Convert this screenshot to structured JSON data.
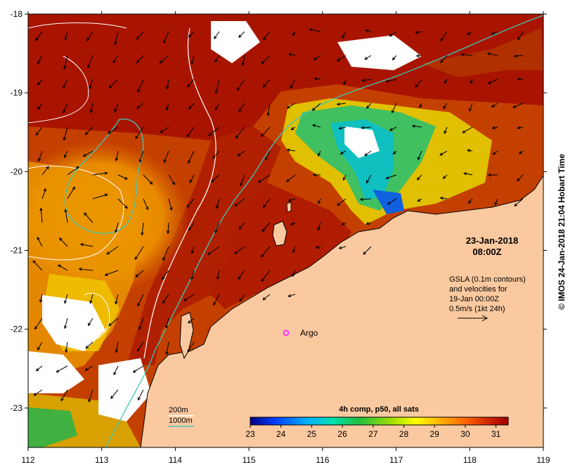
{
  "map": {
    "lon_ticks": [
      "112",
      "113",
      "114",
      "115",
      "116",
      "117",
      "118",
      "119"
    ],
    "lat_ticks": [
      "-18",
      "-19",
      "-20",
      "-21",
      "-22",
      "-23"
    ],
    "lon_range": [
      112,
      119
    ],
    "lat_range": [
      -23.5,
      -18
    ]
  },
  "date_title": "23-Jan-2018",
  "time_title": "08:00Z",
  "gsla": {
    "line1": "GSLA (0.1m contours)",
    "line2": "and velocities for",
    "line3": "19-Jan 00:00Z",
    "line4": "0.5m/s (1kt 24h)"
  },
  "argo_label": "Argo",
  "bathy_legend": {
    "label_200": "200m",
    "label_1000": "1000m",
    "color_200": "#ffffff",
    "color_1000": "#3fc8b8"
  },
  "colorbar": {
    "title": "4h comp, p50, all sats",
    "ticks": [
      "23",
      "24",
      "25",
      "26",
      "27",
      "28",
      "29",
      "30",
      "31"
    ],
    "range": [
      23,
      31.4
    ],
    "colors": [
      "#000080",
      "#0040ff",
      "#00b0ff",
      "#00e0b0",
      "#20c040",
      "#a0e000",
      "#ffff00",
      "#ffb000",
      "#ff6000",
      "#d02000",
      "#a00000"
    ]
  },
  "copyright": "©  IMOS 24-Jan-2018 21:04 Hobart Time",
  "colors": {
    "land": "#fbc9a0",
    "ocean_hot": "#a81400",
    "ocean_warm": "#cc4a00",
    "ocean_mid": "#e88800",
    "argo": "#ff33ff"
  }
}
